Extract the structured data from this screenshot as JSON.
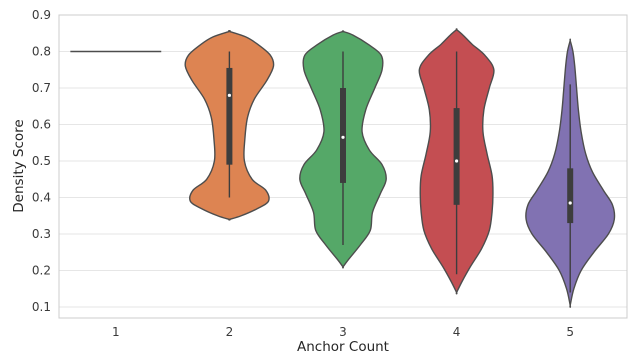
{
  "chart_data": {
    "type": "violin",
    "xlabel": "Anchor Count",
    "ylabel": "Density Score",
    "categories": [
      "1",
      "2",
      "3",
      "4",
      "5"
    ],
    "ylim": [
      0.07,
      0.9
    ],
    "yticks": [
      0.1,
      0.2,
      0.3,
      0.4,
      0.5,
      0.6,
      0.7,
      0.8,
      0.9
    ],
    "grid": "y",
    "legend": "none",
    "series": [
      {
        "category": "1",
        "color": "#4c72b0",
        "min": 0.8,
        "max": 0.8,
        "q1": 0.8,
        "median": 0.8,
        "q3": 0.8,
        "whisker_low": 0.8,
        "whisker_high": 0.8,
        "profile": [
          [
            0.8,
            1.0
          ]
        ]
      },
      {
        "category": "2",
        "color": "#dd8452",
        "min": 0.34,
        "max": 0.855,
        "q1": 0.49,
        "median": 0.68,
        "q3": 0.755,
        "whisker_low": 0.4,
        "whisker_high": 0.8,
        "profile": [
          [
            0.34,
            0.0
          ],
          [
            0.35,
            0.26
          ],
          [
            0.37,
            0.62
          ],
          [
            0.39,
            0.86
          ],
          [
            0.42,
            0.8
          ],
          [
            0.45,
            0.5
          ],
          [
            0.5,
            0.33
          ],
          [
            0.56,
            0.34
          ],
          [
            0.62,
            0.4
          ],
          [
            0.67,
            0.55
          ],
          [
            0.72,
            0.82
          ],
          [
            0.76,
            0.97
          ],
          [
            0.79,
            0.9
          ],
          [
            0.82,
            0.62
          ],
          [
            0.84,
            0.36
          ],
          [
            0.855,
            0.0
          ]
        ]
      },
      {
        "category": "3",
        "color": "#55a868",
        "min": 0.21,
        "max": 0.855,
        "q1": 0.44,
        "median": 0.565,
        "q3": 0.7,
        "whisker_low": 0.27,
        "whisker_high": 0.8,
        "profile": [
          [
            0.21,
            0.0
          ],
          [
            0.23,
            0.12
          ],
          [
            0.27,
            0.38
          ],
          [
            0.31,
            0.6
          ],
          [
            0.36,
            0.65
          ],
          [
            0.41,
            0.82
          ],
          [
            0.45,
            0.95
          ],
          [
            0.49,
            0.86
          ],
          [
            0.53,
            0.58
          ],
          [
            0.58,
            0.42
          ],
          [
            0.64,
            0.5
          ],
          [
            0.7,
            0.7
          ],
          [
            0.75,
            0.86
          ],
          [
            0.79,
            0.84
          ],
          [
            0.82,
            0.55
          ],
          [
            0.845,
            0.22
          ],
          [
            0.855,
            0.0
          ]
        ]
      },
      {
        "category": "4",
        "color": "#c44e52",
        "min": 0.14,
        "max": 0.86,
        "q1": 0.38,
        "median": 0.5,
        "q3": 0.645,
        "whisker_low": 0.19,
        "whisker_high": 0.8,
        "profile": [
          [
            0.14,
            0.0
          ],
          [
            0.17,
            0.12
          ],
          [
            0.21,
            0.3
          ],
          [
            0.26,
            0.55
          ],
          [
            0.31,
            0.72
          ],
          [
            0.36,
            0.78
          ],
          [
            0.41,
            0.8
          ],
          [
            0.46,
            0.78
          ],
          [
            0.52,
            0.67
          ],
          [
            0.58,
            0.58
          ],
          [
            0.64,
            0.6
          ],
          [
            0.7,
            0.72
          ],
          [
            0.75,
            0.82
          ],
          [
            0.79,
            0.62
          ],
          [
            0.82,
            0.34
          ],
          [
            0.845,
            0.14
          ],
          [
            0.86,
            0.0
          ]
        ]
      },
      {
        "category": "5",
        "color": "#8172b2",
        "min": 0.105,
        "max": 0.83,
        "q1": 0.33,
        "median": 0.385,
        "q3": 0.48,
        "whisker_low": 0.14,
        "whisker_high": 0.71,
        "profile": [
          [
            0.105,
            0.0
          ],
          [
            0.15,
            0.08
          ],
          [
            0.2,
            0.24
          ],
          [
            0.25,
            0.52
          ],
          [
            0.3,
            0.84
          ],
          [
            0.34,
            0.97
          ],
          [
            0.38,
            0.93
          ],
          [
            0.42,
            0.73
          ],
          [
            0.47,
            0.49
          ],
          [
            0.52,
            0.34
          ],
          [
            0.58,
            0.24
          ],
          [
            0.64,
            0.18
          ],
          [
            0.7,
            0.14
          ],
          [
            0.76,
            0.1
          ],
          [
            0.8,
            0.06
          ],
          [
            0.83,
            0.0
          ]
        ]
      }
    ]
  }
}
